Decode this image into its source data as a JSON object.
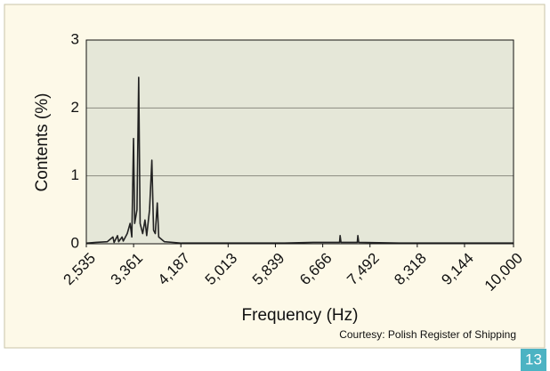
{
  "chart_data": {
    "type": "line",
    "x_label": "Frequency (Hz)",
    "y_label": "Contents (%)",
    "source": "Courtesy: Polish Register of Shipping",
    "page_number": "13",
    "xlim": [
      2535,
      10000
    ],
    "xticks": [
      {
        "value": 2535,
        "label": "2,535"
      },
      {
        "value": 3361,
        "label": "3,361"
      },
      {
        "value": 4187,
        "label": "4,187"
      },
      {
        "value": 5013,
        "label": "5,013"
      },
      {
        "value": 5839,
        "label": "5,839"
      },
      {
        "value": 6666,
        "label": "6,666"
      },
      {
        "value": 7492,
        "label": "7,492"
      },
      {
        "value": 8318,
        "label": "8,318"
      },
      {
        "value": 9144,
        "label": "9,144"
      },
      {
        "value": 10000,
        "label": "10,000"
      }
    ],
    "ylim": [
      0,
      3
    ],
    "yticks": [
      0,
      1,
      2,
      3
    ],
    "grid": true,
    "color": "#222222",
    "x": [
      2535,
      2700,
      2900,
      3000,
      3020,
      3080,
      3100,
      3160,
      3180,
      3250,
      3300,
      3330,
      3360,
      3380,
      3420,
      3450,
      3475,
      3520,
      3560,
      3590,
      3640,
      3680,
      3710,
      3740,
      3775,
      3800,
      3900,
      4200,
      6000,
      6500,
      6960,
      6970,
      6985,
      7270,
      7280,
      7295,
      8000,
      10000
    ],
    "values": [
      0.01,
      0.02,
      0.03,
      0.1,
      0.02,
      0.12,
      0.03,
      0.1,
      0.04,
      0.15,
      0.3,
      0.1,
      1.55,
      0.3,
      0.5,
      2.45,
      0.3,
      0.15,
      0.35,
      0.12,
      0.5,
      1.23,
      0.2,
      0.15,
      0.6,
      0.1,
      0.03,
      0.01,
      0.01,
      0.02,
      0.02,
      0.12,
      0.02,
      0.02,
      0.12,
      0.02,
      0.01,
      0.01
    ]
  }
}
